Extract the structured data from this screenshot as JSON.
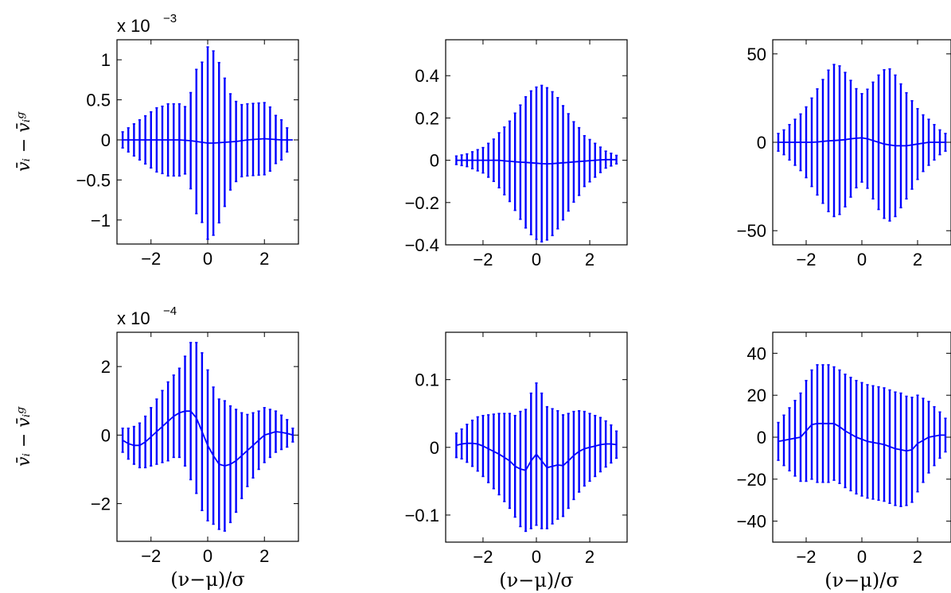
{
  "figure": {
    "series_color": "#0000ff"
  },
  "chart_data": [
    {
      "type": "line",
      "panel": "top-left",
      "scale_note": "x 10",
      "scale_exp": "−3",
      "ylabel": "v̄ᵢ − v̄ᵢᵍ",
      "xlabel": "",
      "xlim": [
        -3.2,
        3.2
      ],
      "ylim": [
        -1.3,
        1.25
      ],
      "xticks": [
        {
          "v": -2,
          "label": "−2"
        },
        {
          "v": 0,
          "label": "0"
        },
        {
          "v": 2,
          "label": "2"
        }
      ],
      "yticks": [
        {
          "v": -1,
          "label": "−1"
        },
        {
          "v": -0.5,
          "label": "−0.5"
        },
        {
          "v": 0,
          "label": "0"
        },
        {
          "v": 0.5,
          "label": "0.5"
        },
        {
          "v": 1,
          "label": "1"
        }
      ],
      "x": [
        -3,
        -2.8,
        -2.6,
        -2.4,
        -2.2,
        -2,
        -1.8,
        -1.6,
        -1.4,
        -1.2,
        -1,
        -0.8,
        -0.6,
        -0.4,
        -0.2,
        0,
        0.2,
        0.4,
        0.6,
        0.8,
        1,
        1.2,
        1.4,
        1.6,
        1.8,
        2,
        2.2,
        2.4,
        2.6,
        2.8,
        3
      ],
      "y": [
        0,
        0,
        0,
        0,
        0,
        0,
        0,
        0,
        0,
        0,
        0,
        -0.005,
        -0.01,
        -0.02,
        -0.03,
        -0.04,
        -0.04,
        -0.035,
        -0.03,
        -0.025,
        -0.02,
        -0.01,
        0,
        0.005,
        0.01,
        0.015,
        0.01,
        0.005,
        0,
        0,
        0
      ],
      "err": [
        0.1,
        0.15,
        0.2,
        0.25,
        0.3,
        0.35,
        0.4,
        0.42,
        0.45,
        0.45,
        0.45,
        0.42,
        0.6,
        0.9,
        1.0,
        1.2,
        1.15,
        1.0,
        0.8,
        0.6,
        0.5,
        0.45,
        0.45,
        0.45,
        0.45,
        0.45,
        0.4,
        0.3,
        0.25,
        0.15,
        0
      ]
    },
    {
      "type": "line",
      "panel": "top-middle",
      "ylabel": "",
      "xlabel": "",
      "xlim": [
        -3.4,
        3.4
      ],
      "ylim": [
        -0.4,
        0.57
      ],
      "xticks": [
        {
          "v": -2,
          "label": "−2"
        },
        {
          "v": 0,
          "label": "0"
        },
        {
          "v": 2,
          "label": "2"
        }
      ],
      "yticks": [
        {
          "v": -0.4,
          "label": "−0.4"
        },
        {
          "v": -0.2,
          "label": "−0.2"
        },
        {
          "v": 0,
          "label": "0"
        },
        {
          "v": 0.2,
          "label": "0.2"
        },
        {
          "v": 0.4,
          "label": "0.4"
        }
      ],
      "x": [
        -3,
        -2.8,
        -2.6,
        -2.4,
        -2.2,
        -2,
        -1.8,
        -1.6,
        -1.4,
        -1.2,
        -1,
        -0.8,
        -0.6,
        -0.4,
        -0.2,
        0,
        0.2,
        0.4,
        0.6,
        0.8,
        1,
        1.2,
        1.4,
        1.6,
        1.8,
        2,
        2.2,
        2.4,
        2.6,
        2.8,
        3
      ],
      "y": [
        0,
        0,
        0,
        0,
        0,
        0,
        0,
        0,
        0,
        -0.003,
        -0.005,
        -0.007,
        -0.009,
        -0.01,
        -0.012,
        -0.014,
        -0.016,
        -0.017,
        -0.016,
        -0.014,
        -0.012,
        -0.01,
        -0.008,
        -0.006,
        -0.004,
        -0.002,
        0,
        0.002,
        0.003,
        0.003,
        0.003
      ],
      "err": [
        0.02,
        0.025,
        0.03,
        0.04,
        0.05,
        0.06,
        0.08,
        0.1,
        0.13,
        0.16,
        0.19,
        0.23,
        0.27,
        0.31,
        0.34,
        0.36,
        0.37,
        0.36,
        0.34,
        0.31,
        0.27,
        0.23,
        0.19,
        0.16,
        0.12,
        0.1,
        0.08,
        0.06,
        0.04,
        0.03,
        0.02
      ]
    },
    {
      "type": "line",
      "panel": "top-right",
      "ylabel": "",
      "xlabel": "",
      "xlim": [
        -3.2,
        3.2
      ],
      "ylim": [
        -58,
        58
      ],
      "xticks": [
        {
          "v": -2,
          "label": "−2"
        },
        {
          "v": 0,
          "label": "0"
        },
        {
          "v": 2,
          "label": "2"
        }
      ],
      "yticks": [
        {
          "v": -50,
          "label": "−50"
        },
        {
          "v": 0,
          "label": "0"
        },
        {
          "v": 50,
          "label": "50"
        }
      ],
      "x": [
        -3,
        -2.8,
        -2.6,
        -2.4,
        -2.2,
        -2,
        -1.8,
        -1.6,
        -1.4,
        -1.2,
        -1,
        -0.8,
        -0.6,
        -0.4,
        -0.2,
        0,
        0.2,
        0.4,
        0.6,
        0.8,
        1,
        1.2,
        1.4,
        1.6,
        1.8,
        2,
        2.2,
        2.4,
        2.6,
        2.8,
        3
      ],
      "y": [
        0,
        0,
        0,
        0,
        0,
        0,
        0,
        0.2,
        0.5,
        0.8,
        1.0,
        1.2,
        1.5,
        2.0,
        2.3,
        2.5,
        2.0,
        1.0,
        0,
        -1.0,
        -1.5,
        -2.0,
        -2.0,
        -2.0,
        -1.5,
        -1.0,
        -0.5,
        0,
        0,
        0,
        0
      ],
      "err": [
        5,
        7,
        10,
        13,
        16,
        20,
        25,
        30,
        35,
        40,
        43,
        42,
        38,
        33,
        28,
        25,
        28,
        33,
        38,
        42,
        43,
        40,
        35,
        30,
        25,
        20,
        16,
        13,
        10,
        7,
        5
      ]
    },
    {
      "type": "line",
      "panel": "bottom-left",
      "scale_note": "x 10",
      "scale_exp": "−4",
      "ylabel": "v̄ᵢ − v̄ᵢᵍ",
      "xlabel": "(ν−μ)/σ",
      "xlim": [
        -3.2,
        3.2
      ],
      "ylim": [
        -3.1,
        3.0
      ],
      "xticks": [
        {
          "v": -2,
          "label": "−2"
        },
        {
          "v": 0,
          "label": "0"
        },
        {
          "v": 2,
          "label": "2"
        }
      ],
      "yticks": [
        {
          "v": -2,
          "label": "−2"
        },
        {
          "v": 0,
          "label": "0"
        },
        {
          "v": 2,
          "label": "2"
        }
      ],
      "x": [
        -3,
        -2.8,
        -2.6,
        -2.4,
        -2.2,
        -2,
        -1.8,
        -1.6,
        -1.4,
        -1.2,
        -1,
        -0.8,
        -0.6,
        -0.4,
        -0.2,
        0,
        0.2,
        0.4,
        0.6,
        0.8,
        1,
        1.2,
        1.4,
        1.6,
        1.8,
        2,
        2.2,
        2.4,
        2.6,
        2.8,
        3
      ],
      "y": [
        -0.15,
        -0.25,
        -0.3,
        -0.3,
        -0.2,
        -0.05,
        0.1,
        0.25,
        0.4,
        0.55,
        0.65,
        0.7,
        0.7,
        0.5,
        0.1,
        -0.3,
        -0.6,
        -0.85,
        -0.9,
        -0.85,
        -0.75,
        -0.6,
        -0.45,
        -0.3,
        -0.15,
        0,
        0.05,
        0.1,
        0.08,
        0.05,
        0
      ],
      "err": [
        0.35,
        0.45,
        0.55,
        0.65,
        0.75,
        0.85,
        0.95,
        1.05,
        1.15,
        1.2,
        1.3,
        1.6,
        2.0,
        2.2,
        2.3,
        2.2,
        2.0,
        1.9,
        1.9,
        1.7,
        1.5,
        1.25,
        1.05,
        0.95,
        0.85,
        0.8,
        0.7,
        0.6,
        0.5,
        0.4,
        0.2
      ]
    },
    {
      "type": "line",
      "panel": "bottom-middle",
      "ylabel": "",
      "xlabel": "(ν−μ)/σ",
      "xlim": [
        -3.4,
        3.4
      ],
      "ylim": [
        -0.14,
        0.17
      ],
      "xticks": [
        {
          "v": -2,
          "label": "−2"
        },
        {
          "v": 0,
          "label": "0"
        },
        {
          "v": 2,
          "label": "2"
        }
      ],
      "yticks": [
        {
          "v": -0.1,
          "label": "−0.1"
        },
        {
          "v": 0,
          "label": "0"
        },
        {
          "v": 0.1,
          "label": "0.1"
        }
      ],
      "x": [
        -3,
        -2.8,
        -2.6,
        -2.4,
        -2.2,
        -2,
        -1.8,
        -1.6,
        -1.4,
        -1.2,
        -1,
        -0.8,
        -0.6,
        -0.4,
        -0.2,
        0,
        0.2,
        0.4,
        0.6,
        0.8,
        1,
        1.2,
        1.4,
        1.6,
        1.8,
        2,
        2.2,
        2.4,
        2.6,
        2.8,
        3
      ],
      "y": [
        0.003,
        0.005,
        0.006,
        0.006,
        0.005,
        0.002,
        -0.002,
        -0.006,
        -0.01,
        -0.015,
        -0.02,
        -0.028,
        -0.032,
        -0.034,
        -0.02,
        -0.01,
        -0.02,
        -0.03,
        -0.028,
        -0.026,
        -0.027,
        -0.02,
        -0.012,
        -0.006,
        -0.002,
        0,
        0.002,
        0.004,
        0.005,
        0.005,
        0.004
      ],
      "err": [
        0.018,
        0.022,
        0.028,
        0.034,
        0.04,
        0.045,
        0.05,
        0.055,
        0.06,
        0.065,
        0.07,
        0.075,
        0.085,
        0.09,
        0.1,
        0.105,
        0.1,
        0.09,
        0.085,
        0.08,
        0.075,
        0.07,
        0.065,
        0.06,
        0.055,
        0.05,
        0.045,
        0.04,
        0.034,
        0.028,
        0.02
      ]
    },
    {
      "type": "line",
      "panel": "bottom-right",
      "ylabel": "",
      "xlabel": "(ν−μ)/σ",
      "xlim": [
        -3.2,
        3.2
      ],
      "ylim": [
        -50,
        50
      ],
      "xticks": [
        {
          "v": -2,
          "label": "−2"
        },
        {
          "v": 0,
          "label": "0"
        },
        {
          "v": 2,
          "label": "2"
        }
      ],
      "yticks": [
        {
          "v": -40,
          "label": "−40"
        },
        {
          "v": -20,
          "label": "−20"
        },
        {
          "v": 0,
          "label": "0"
        },
        {
          "v": 20,
          "label": "20"
        },
        {
          "v": 40,
          "label": "40"
        }
      ],
      "x": [
        -3,
        -2.8,
        -2.6,
        -2.4,
        -2.2,
        -2,
        -1.8,
        -1.6,
        -1.4,
        -1.2,
        -1,
        -0.8,
        -0.6,
        -0.4,
        -0.2,
        0,
        0.2,
        0.4,
        0.6,
        0.8,
        1,
        1.2,
        1.4,
        1.6,
        1.8,
        2,
        2.2,
        2.4,
        2.6,
        2.8,
        3
      ],
      "y": [
        -2,
        -1.5,
        -1,
        -0.5,
        0,
        3,
        6,
        6.5,
        6.5,
        6.5,
        6.5,
        5,
        3,
        1.5,
        0,
        -1,
        -2,
        -2.5,
        -3,
        -3.5,
        -4.5,
        -5.5,
        -6,
        -6.5,
        -6,
        -3,
        -1.5,
        0,
        0.5,
        1,
        1
      ],
      "err": [
        9,
        12,
        15,
        18,
        21,
        24,
        26,
        28,
        28,
        28,
        27,
        27,
        27,
        27,
        27,
        27,
        27,
        27,
        27,
        27,
        27,
        27,
        27,
        26,
        25,
        23,
        20,
        17,
        14,
        11,
        8
      ]
    }
  ]
}
